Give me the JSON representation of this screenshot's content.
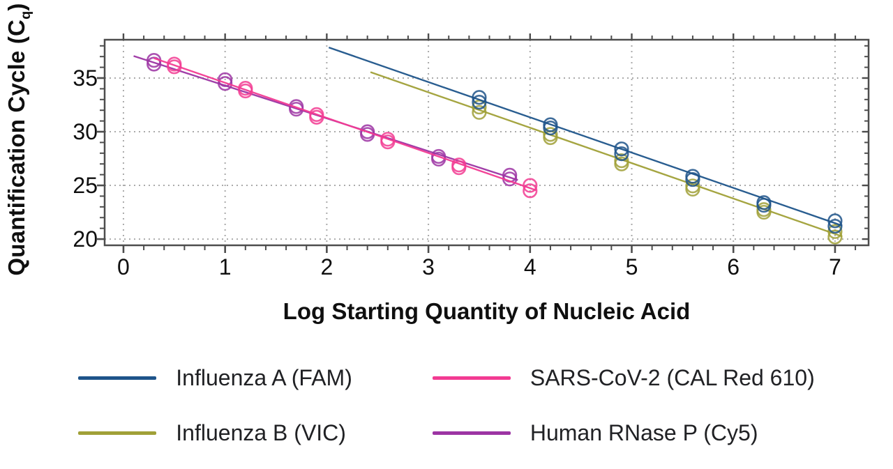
{
  "chart_data": {
    "type": "scatter",
    "title": "",
    "xlabel": "Log Starting Quantity of Nucleic Acid",
    "ylabel": "Quantification Cycle (Cq)",
    "ylabel_main": "Quantification Cycle (C",
    "ylabel_sub": "q",
    "ylabel_close": ")",
    "xlim": [
      -0.185,
      7.33
    ],
    "ylim": [
      19.42,
      38.57
    ],
    "x_major_ticks": [
      0,
      1,
      2,
      3,
      4,
      5,
      6,
      7
    ],
    "x_minor_step": 0.2,
    "y_major_ticks": [
      20,
      25,
      30,
      35
    ],
    "y_minor_step": 1,
    "grid": {
      "style": "dotted",
      "color": "#aaaaaa"
    },
    "frame_color": "#4d4d4d",
    "text_color": "#0f0f0f",
    "legend_position": "bottom",
    "series": [
      {
        "name": "Influenza A (FAM)",
        "color": "#1e548a",
        "points": [
          [
            3.5,
            33.2
          ],
          [
            3.5,
            32.75
          ],
          [
            4.2,
            30.65
          ],
          [
            4.2,
            30.35
          ],
          [
            4.9,
            28.4
          ],
          [
            4.9,
            27.95
          ],
          [
            5.6,
            25.85
          ],
          [
            5.6,
            25.55
          ],
          [
            6.3,
            23.4
          ],
          [
            6.3,
            23.15
          ],
          [
            7.0,
            21.7
          ],
          [
            7.0,
            21.2
          ]
        ],
        "trend": [
          2.02,
          37.85,
          7.07,
          21.25
        ]
      },
      {
        "name": "Influenza B (VIC)",
        "color": "#a0a037",
        "points": [
          [
            3.5,
            32.3
          ],
          [
            3.5,
            31.8
          ],
          [
            4.2,
            29.75
          ],
          [
            4.2,
            29.45
          ],
          [
            4.9,
            27.3
          ],
          [
            4.9,
            27.0
          ],
          [
            5.6,
            24.95
          ],
          [
            5.6,
            24.65
          ],
          [
            6.3,
            22.75
          ],
          [
            6.3,
            22.5
          ],
          [
            7.0,
            20.7
          ],
          [
            7.0,
            20.2
          ]
        ],
        "trend": [
          2.43,
          35.55,
          7.07,
          20.25
        ]
      },
      {
        "name": "SARS-CoV-2 (CAL Red 610)",
        "color": "#f23b92",
        "points": [
          [
            0.5,
            36.3
          ],
          [
            0.5,
            36.05
          ],
          [
            1.2,
            34.05
          ],
          [
            1.2,
            33.8
          ],
          [
            1.9,
            31.6
          ],
          [
            1.9,
            31.35
          ],
          [
            2.6,
            29.3
          ],
          [
            2.6,
            29.05
          ],
          [
            3.3,
            26.9
          ],
          [
            3.3,
            26.65
          ],
          [
            4.0,
            25.0
          ],
          [
            4.0,
            24.5
          ]
        ],
        "trend": [
          0.3,
          36.85,
          4.06,
          24.55
        ]
      },
      {
        "name": "Human RNase P (Cy5)",
        "color": "#9c34a3",
        "points": [
          [
            0.3,
            36.65
          ],
          [
            0.3,
            36.3
          ],
          [
            1.0,
            34.85
          ],
          [
            1.0,
            34.5
          ],
          [
            1.7,
            32.35
          ],
          [
            1.7,
            32.1
          ],
          [
            2.4,
            30.0
          ],
          [
            2.4,
            29.75
          ],
          [
            3.1,
            27.7
          ],
          [
            3.1,
            27.45
          ],
          [
            3.8,
            25.95
          ],
          [
            3.8,
            25.6
          ]
        ],
        "trend": [
          0.1,
          37.05,
          3.88,
          25.5
        ]
      }
    ]
  },
  "legend": {
    "items": [
      {
        "label": "Influenza A (FAM)",
        "color": "#1e548a"
      },
      {
        "label": "SARS-CoV-2 (CAL Red 610)",
        "color": "#f23b92"
      },
      {
        "label": "Influenza B (VIC)",
        "color": "#a0a037"
      },
      {
        "label": "Human RNase P (Cy5)",
        "color": "#9c34a3"
      }
    ]
  }
}
